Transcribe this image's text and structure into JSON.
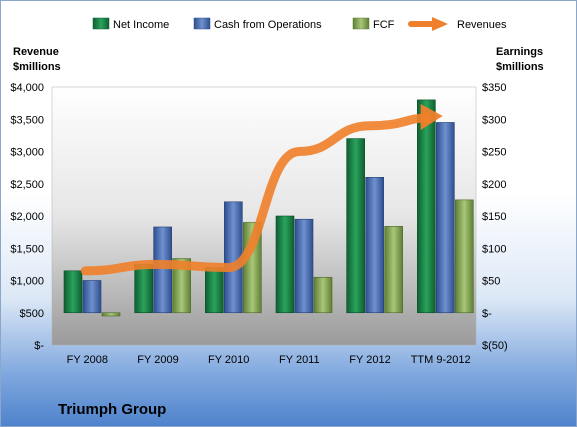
{
  "chart_data": {
    "type": "bar",
    "company": "Triumph Group",
    "categories": [
      "FY 2008",
      "FY 2009",
      "FY 2010",
      "FY 2011",
      "FY 2012",
      "TTM 9-2012"
    ],
    "left_axis_label": [
      "Revenue",
      "$millions"
    ],
    "right_axis_label": [
      "Earnings",
      "$millions"
    ],
    "left_ticks": [
      "$-",
      "$500",
      "$1,000",
      "$1,500",
      "$2,000",
      "$2,500",
      "$3,000",
      "$3,500",
      "$4,000"
    ],
    "right_ticks": [
      "$(50)",
      "$-",
      "$50",
      "$100",
      "$150",
      "$200",
      "$250",
      "$300",
      "$350"
    ],
    "left_ylim": [
      0,
      4000
    ],
    "right_ylim": [
      -50,
      350
    ],
    "series": [
      {
        "name": "Net Income",
        "axis": "right",
        "color": "#1e8a4a",
        "values": [
          65,
          75,
          70,
          150,
          270,
          330
        ]
      },
      {
        "name": "Cash from Operations",
        "axis": "right",
        "color": "#4a6fb5",
        "values": [
          50,
          133,
          172,
          145,
          210,
          295
        ]
      },
      {
        "name": "FCF",
        "axis": "right",
        "color": "#8fb05a",
        "values": [
          -5,
          84,
          140,
          55,
          134,
          175
        ]
      },
      {
        "name": "Revenues",
        "axis": "left",
        "type": "line",
        "color": "#ef7f2a",
        "values": [
          1150,
          1250,
          1200,
          3000,
          3400,
          3550
        ]
      }
    ],
    "legend_position": "top",
    "grid": false
  }
}
